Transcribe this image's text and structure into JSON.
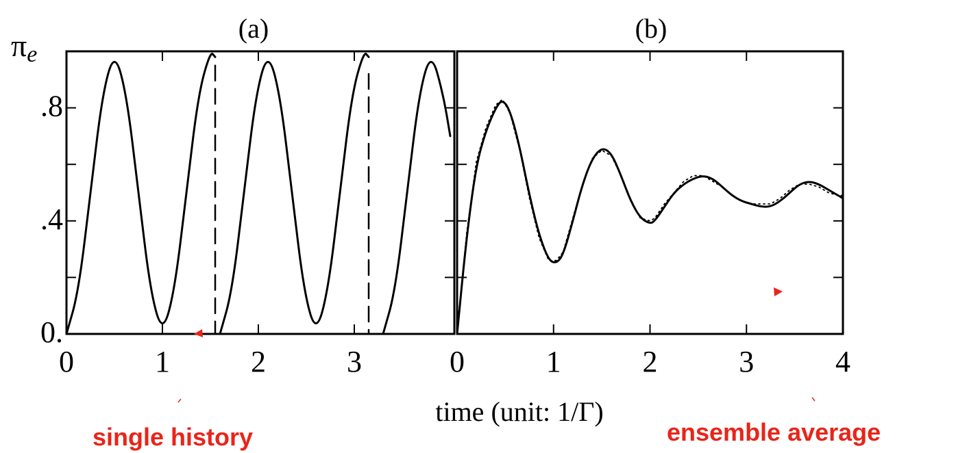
{
  "figure": {
    "xlabel": "time (unit: 1/Γ)",
    "ylabel": "π",
    "ylabel_subscript": "e",
    "accent_color": "#e8251a",
    "annotations": {
      "left": "single history",
      "right": "ensemble average"
    }
  },
  "chart_data": [
    {
      "type": "line",
      "title": "(a)",
      "xlim": [
        0,
        4
      ],
      "ylim": [
        0,
        1
      ],
      "x_ticks": [
        "0",
        "1",
        "2",
        "3"
      ],
      "y_ticks": [
        "0.",
        ".4",
        ".8"
      ],
      "y_tick_values": [
        0,
        0.4,
        0.8
      ],
      "y_minor_tick_values": [
        0.2,
        0.6,
        1.0
      ],
      "series": [
        {
          "style": "solid",
          "segments": [
            {
              "x": [
                0.0,
                0.125,
                0.25,
                0.375,
                0.5,
                0.625,
                0.75,
                0.875,
                1.0,
                1.125,
                1.25,
                1.375,
                1.5,
                1.55
              ],
              "y": [
                0.0,
                0.15,
                0.5,
                0.85,
                1.0,
                0.85,
                0.5,
                0.15,
                0.0,
                0.15,
                0.5,
                0.85,
                1.0,
                0.98
              ]
            },
            {
              "x": [
                1.6,
                1.725,
                1.85,
                1.975,
                2.1,
                2.225,
                2.35,
                2.475,
                2.6,
                2.725,
                2.85,
                2.975,
                3.1,
                3.15
              ],
              "y": [
                0.0,
                0.15,
                0.5,
                0.85,
                1.0,
                0.85,
                0.5,
                0.15,
                0.0,
                0.15,
                0.5,
                0.85,
                1.0,
                0.98
              ]
            },
            {
              "x": [
                3.3,
                3.425,
                3.55,
                3.675,
                3.8,
                3.925,
                4.0
              ],
              "y": [
                0.0,
                0.15,
                0.5,
                0.85,
                1.0,
                0.85,
                0.7
              ]
            }
          ]
        },
        {
          "style": "dashed",
          "segments": [
            {
              "x": [
                1.55,
                1.55
              ],
              "y": [
                0.95,
                0.0
              ]
            },
            {
              "x": [
                3.15,
                3.15
              ],
              "y": [
                0.92,
                0.0
              ]
            }
          ]
        }
      ]
    },
    {
      "type": "line",
      "title": "(b)",
      "xlim": [
        0,
        4
      ],
      "ylim": [
        0,
        1
      ],
      "x_ticks": [
        "0",
        "1",
        "2",
        "3",
        "4"
      ],
      "y_tick_values": [
        0,
        0.2,
        0.4,
        0.6,
        0.8,
        1.0
      ],
      "series": [
        {
          "style": "solid",
          "x": [
            0.0,
            0.1,
            0.2,
            0.3,
            0.4,
            0.47,
            0.55,
            0.65,
            0.75,
            0.85,
            0.95,
            1.03,
            1.1,
            1.2,
            1.3,
            1.4,
            1.5,
            1.6,
            1.7,
            1.8,
            1.9,
            2.0,
            2.05,
            2.15,
            2.25,
            2.35,
            2.45,
            2.55,
            2.65,
            2.75,
            2.85,
            2.95,
            3.05,
            3.15,
            3.25,
            3.35,
            3.45,
            3.55,
            3.65,
            3.75,
            3.85,
            3.95,
            4.0
          ],
          "y": [
            0.0,
            0.35,
            0.6,
            0.72,
            0.8,
            0.83,
            0.79,
            0.66,
            0.49,
            0.35,
            0.26,
            0.25,
            0.28,
            0.4,
            0.53,
            0.62,
            0.66,
            0.64,
            0.56,
            0.47,
            0.41,
            0.39,
            0.4,
            0.45,
            0.5,
            0.53,
            0.55,
            0.56,
            0.55,
            0.52,
            0.49,
            0.47,
            0.46,
            0.45,
            0.45,
            0.47,
            0.5,
            0.53,
            0.54,
            0.53,
            0.51,
            0.49,
            0.48
          ]
        },
        {
          "style": "dotted",
          "x": [
            0.0,
            0.1,
            0.2,
            0.3,
            0.4,
            0.47,
            0.55,
            0.65,
            0.75,
            0.85,
            0.95,
            1.03,
            1.1,
            1.2,
            1.3,
            1.4,
            1.5,
            1.6,
            1.7,
            1.8,
            1.9,
            2.0,
            2.05,
            2.15,
            2.25,
            2.35,
            2.45,
            2.55,
            2.65,
            2.75,
            2.85,
            2.95,
            3.05,
            3.15,
            3.25,
            3.35,
            3.45,
            3.55,
            3.65,
            3.75,
            3.85,
            3.95,
            4.0
          ],
          "y": [
            0.0,
            0.36,
            0.61,
            0.73,
            0.81,
            0.83,
            0.78,
            0.65,
            0.48,
            0.34,
            0.26,
            0.26,
            0.29,
            0.41,
            0.53,
            0.62,
            0.65,
            0.63,
            0.56,
            0.47,
            0.41,
            0.4,
            0.41,
            0.46,
            0.5,
            0.54,
            0.56,
            0.56,
            0.54,
            0.52,
            0.49,
            0.47,
            0.46,
            0.46,
            0.46,
            0.48,
            0.51,
            0.53,
            0.53,
            0.52,
            0.5,
            0.49,
            0.49
          ]
        }
      ]
    }
  ]
}
